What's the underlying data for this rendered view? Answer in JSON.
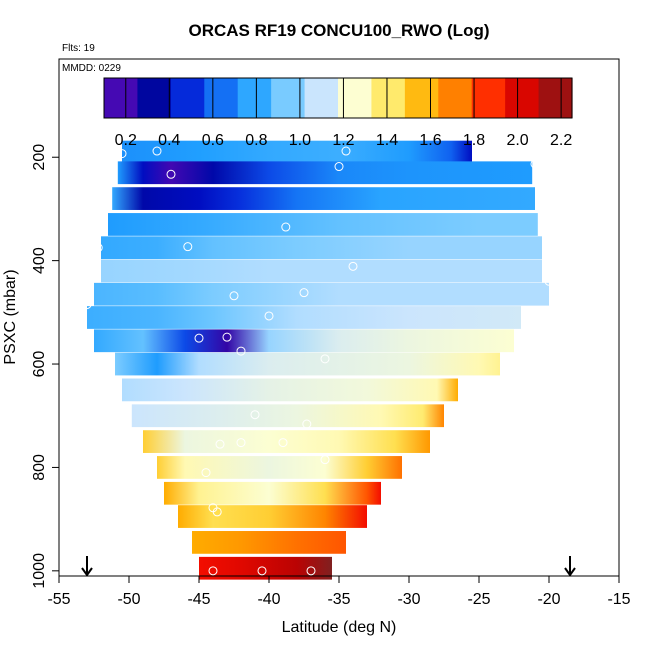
{
  "chart_data": {
    "type": "heatmap",
    "title": "ORCAS RF19 CONCU100_RWO (Log)",
    "flights_note": "Flts: 19",
    "date_note": "MMDD: 0229",
    "xlabel": "Latitude (deg N)",
    "ylabel": "PSXC (mbar)",
    "xlim": [
      -55,
      -15
    ],
    "ylim": [
      1010,
      10
    ],
    "x_ticks": [
      -55,
      -50,
      -45,
      -40,
      -35,
      -30,
      -25,
      -20,
      -15
    ],
    "y_ticks": [
      200,
      400,
      600,
      800,
      1000
    ],
    "colorbar": {
      "range": [
        0.1,
        2.25
      ],
      "ticks": [
        "0.2",
        "0.4",
        "0.6",
        "0.8",
        "1.0",
        "1.2",
        "1.4",
        "1.6",
        "1.8",
        "2.0",
        "2.2"
      ],
      "tick_values": [
        0.2,
        0.4,
        0.6,
        0.8,
        1.0,
        1.2,
        1.4,
        1.6,
        1.8,
        2.0,
        2.2
      ],
      "colors": [
        "#8010e0",
        "#000080",
        "#0010d0",
        "#1060f0",
        "#20a0ff",
        "#70c8ff",
        "#c8e4ff",
        "#ffffd0",
        "#ffe860",
        "#ffb000",
        "#ff7000",
        "#ff1000",
        "#c00000",
        "#802020"
      ]
    },
    "bands": [
      {
        "p": 190,
        "lat_min": -50.5,
        "lat_max": -25.5,
        "stops": [
          [
            -50.5,
            0.72
          ],
          [
            -45,
            0.76
          ],
          [
            -40,
            0.8
          ],
          [
            -35,
            0.82
          ],
          [
            -30,
            0.75
          ],
          [
            -27,
            0.6
          ],
          [
            -25.5,
            0.4
          ]
        ]
      },
      {
        "p": 230,
        "lat_min": -50.8,
        "lat_max": -21.2,
        "stops": [
          [
            -50.8,
            0.75
          ],
          [
            -49,
            0.4
          ],
          [
            -47,
            0.18
          ],
          [
            -44,
            0.35
          ],
          [
            -40,
            0.55
          ],
          [
            -35,
            0.7
          ],
          [
            -30,
            0.73
          ],
          [
            -21.2,
            0.75
          ]
        ]
      },
      {
        "p": 280,
        "lat_min": -51.2,
        "lat_max": -21.0,
        "stops": [
          [
            -51.2,
            0.8
          ],
          [
            -49,
            0.35
          ],
          [
            -45,
            0.4
          ],
          [
            -42,
            0.5
          ],
          [
            -38,
            0.65
          ],
          [
            -32,
            0.78
          ],
          [
            -21,
            0.8
          ]
        ]
      },
      {
        "p": 330,
        "lat_min": -51.5,
        "lat_max": -20.8,
        "stops": [
          [
            -51.5,
            0.75
          ],
          [
            -45,
            0.8
          ],
          [
            -35,
            0.9
          ],
          [
            -25,
            0.95
          ],
          [
            -20.8,
            0.95
          ]
        ]
      },
      {
        "p": 375,
        "lat_min": -52.0,
        "lat_max": -20.5,
        "stops": [
          [
            -52,
            0.8
          ],
          [
            -48,
            0.82
          ],
          [
            -44,
            0.9
          ],
          [
            -38,
            0.95
          ],
          [
            -30,
            1.0
          ],
          [
            -20.5,
            1.0
          ]
        ]
      },
      {
        "p": 420,
        "lat_min": -52.0,
        "lat_max": -20.5,
        "stops": [
          [
            -52,
            1.0
          ],
          [
            -46,
            1.02
          ],
          [
            -40,
            1.05
          ],
          [
            -30,
            1.05
          ],
          [
            -20.5,
            1.05
          ]
        ]
      },
      {
        "p": 465,
        "lat_min": -52.5,
        "lat_max": -20.0,
        "stops": [
          [
            -52.5,
            0.85
          ],
          [
            -48,
            0.88
          ],
          [
            -44,
            0.95
          ],
          [
            -35,
            1.05
          ],
          [
            -20,
            1.05
          ]
        ]
      },
      {
        "p": 510,
        "lat_min": -53.0,
        "lat_max": -22.0,
        "stops": [
          [
            -53,
            0.82
          ],
          [
            -48,
            0.85
          ],
          [
            -44,
            0.92
          ],
          [
            -38,
            1.05
          ],
          [
            -30,
            1.1
          ],
          [
            -22,
            1.12
          ]
        ]
      },
      {
        "p": 555,
        "lat_min": -52.5,
        "lat_max": -22.5,
        "stops": [
          [
            -52.5,
            0.8
          ],
          [
            -49,
            0.9
          ],
          [
            -46,
            0.55
          ],
          [
            -43,
            0.2
          ],
          [
            -40,
            1.0
          ],
          [
            -35,
            1.15
          ],
          [
            -30,
            1.2
          ],
          [
            -22.5,
            1.25
          ]
        ]
      },
      {
        "p": 600,
        "lat_min": -51.0,
        "lat_max": -23.5,
        "stops": [
          [
            -51,
            0.95
          ],
          [
            -48,
            0.75
          ],
          [
            -45,
            1.05
          ],
          [
            -40,
            1.15
          ],
          [
            -30,
            1.2
          ],
          [
            -25,
            1.3
          ],
          [
            -23.5,
            1.35
          ]
        ]
      },
      {
        "p": 650,
        "lat_min": -50.5,
        "lat_max": -26.5,
        "stops": [
          [
            -50.5,
            1.05
          ],
          [
            -46,
            1.1
          ],
          [
            -40,
            1.18
          ],
          [
            -33,
            1.22
          ],
          [
            -28,
            1.3
          ],
          [
            -26.5,
            1.6
          ]
        ]
      },
      {
        "p": 700,
        "lat_min": -49.8,
        "lat_max": -27.5,
        "stops": [
          [
            -49.8,
            1.1
          ],
          [
            -44,
            1.15
          ],
          [
            -38,
            1.2
          ],
          [
            -32,
            1.3
          ],
          [
            -29,
            1.4
          ],
          [
            -27.5,
            1.7
          ]
        ]
      },
      {
        "p": 750,
        "lat_min": -49.0,
        "lat_max": -28.5,
        "stops": [
          [
            -49,
            1.5
          ],
          [
            -46,
            1.2
          ],
          [
            -40,
            1.25
          ],
          [
            -35,
            1.3
          ],
          [
            -31,
            1.45
          ],
          [
            -28.5,
            1.65
          ]
        ]
      },
      {
        "p": 800,
        "lat_min": -48.0,
        "lat_max": -30.5,
        "stops": [
          [
            -48,
            1.5
          ],
          [
            -46,
            1.3
          ],
          [
            -40,
            1.2
          ],
          [
            -36,
            1.25
          ],
          [
            -33,
            1.5
          ],
          [
            -30.5,
            1.75
          ]
        ]
      },
      {
        "p": 850,
        "lat_min": -47.5,
        "lat_max": -32.0,
        "stops": [
          [
            -47.5,
            1.6
          ],
          [
            -45,
            1.35
          ],
          [
            -40,
            1.25
          ],
          [
            -36,
            1.45
          ],
          [
            -33,
            1.8
          ],
          [
            -32,
            1.95
          ]
        ]
      },
      {
        "p": 895,
        "lat_min": -46.5,
        "lat_max": -33.0,
        "stops": [
          [
            -46.5,
            1.6
          ],
          [
            -44,
            1.45
          ],
          [
            -40,
            1.5
          ],
          [
            -36,
            1.7
          ],
          [
            -33,
            1.95
          ]
        ]
      },
      {
        "p": 945,
        "lat_min": -45.5,
        "lat_max": -34.5,
        "stops": [
          [
            -45.5,
            1.6
          ],
          [
            -42,
            1.65
          ],
          [
            -38,
            1.75
          ],
          [
            -34.5,
            1.8
          ]
        ]
      },
      {
        "p": 995,
        "lat_min": -45.0,
        "lat_max": -35.5,
        "stops": [
          [
            -45,
            1.95
          ],
          [
            -42,
            2.0
          ],
          [
            -38,
            2.1
          ],
          [
            -35.5,
            2.25
          ]
        ]
      }
    ],
    "markers": [
      {
        "lat": -50.5,
        "p": 193
      },
      {
        "lat": -48.0,
        "p": 188
      },
      {
        "lat": -34.5,
        "p": 188
      },
      {
        "lat": -21.0,
        "p": 213
      },
      {
        "lat": -47.0,
        "p": 233
      },
      {
        "lat": -35.0,
        "p": 218
      },
      {
        "lat": -38.8,
        "p": 335
      },
      {
        "lat": -52.2,
        "p": 375
      },
      {
        "lat": -45.8,
        "p": 373
      },
      {
        "lat": -34.0,
        "p": 411
      },
      {
        "lat": -20.0,
        "p": 440
      },
      {
        "lat": -37.5,
        "p": 462
      },
      {
        "lat": -42.5,
        "p": 468
      },
      {
        "lat": -53.0,
        "p": 485
      },
      {
        "lat": -40.0,
        "p": 507
      },
      {
        "lat": -45.0,
        "p": 550
      },
      {
        "lat": -43.0,
        "p": 548
      },
      {
        "lat": -42.0,
        "p": 575
      },
      {
        "lat": -36.0,
        "p": 590
      },
      {
        "lat": -41.0,
        "p": 698
      },
      {
        "lat": -37.3,
        "p": 716
      },
      {
        "lat": -43.5,
        "p": 755
      },
      {
        "lat": -42.0,
        "p": 752
      },
      {
        "lat": -39.0,
        "p": 752
      },
      {
        "lat": -36.0,
        "p": 785
      },
      {
        "lat": -44.5,
        "p": 810
      },
      {
        "lat": -44.0,
        "p": 878
      },
      {
        "lat": -43.7,
        "p": 886
      },
      {
        "lat": -44.0,
        "p": 1000
      },
      {
        "lat": -40.5,
        "p": 1000
      },
      {
        "lat": -37.0,
        "p": 1000
      }
    ],
    "arrows_lat": [
      -53.0,
      -18.5
    ]
  }
}
